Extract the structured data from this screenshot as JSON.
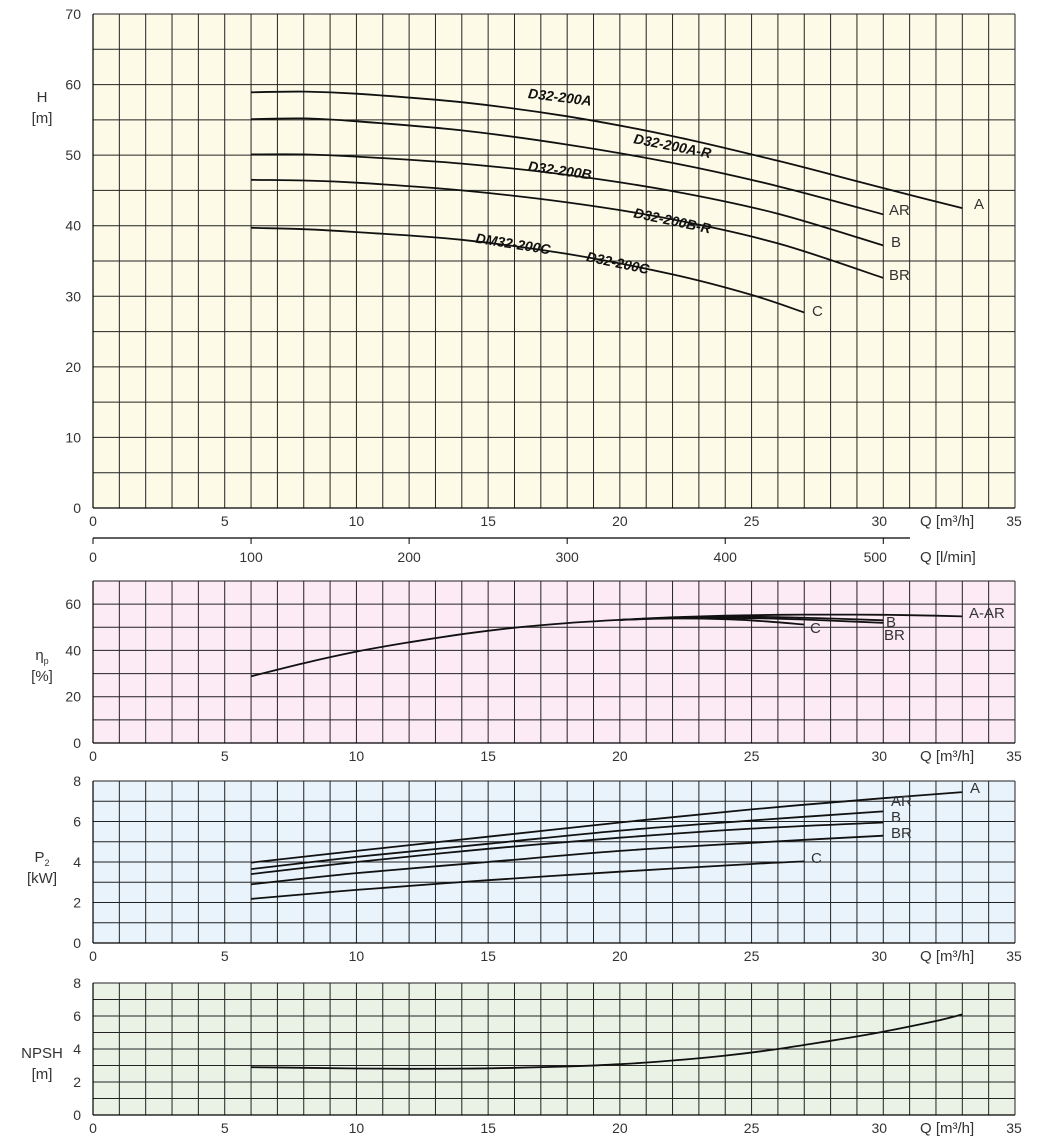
{
  "colors": {
    "head_bg": "#fdfbe7",
    "eff_bg": "#fcebf5",
    "power_bg": "#e8f3fb",
    "npsh_bg": "#eaf2e6",
    "grid": "#222222",
    "curve": "#111111"
  },
  "chart_data": [
    {
      "id": "head",
      "type": "line",
      "ylabel": "H",
      "yunit": "[m]",
      "xlabel": "Q [m³/h]",
      "xlabel2": "Q [l/min]",
      "xlim": [
        0,
        35
      ],
      "ylim": [
        0,
        70
      ],
      "xticks": [
        0,
        5,
        10,
        15,
        20,
        25,
        30,
        35
      ],
      "yticks": [
        0,
        10,
        20,
        30,
        40,
        50,
        60,
        70
      ],
      "x2ticks": [
        0,
        100,
        200,
        300,
        400,
        500
      ],
      "grid": true,
      "series": [
        {
          "name": "A",
          "x": [
            6,
            8,
            10,
            14,
            18,
            22,
            26,
            29,
            31.5,
            33
          ],
          "y": [
            58.9,
            59,
            58.7,
            57.5,
            55.5,
            52.7,
            49.2,
            46.3,
            43.9,
            42.5
          ]
        },
        {
          "name": "AR",
          "x": [
            6,
            8,
            10,
            14,
            18,
            22,
            26,
            30
          ],
          "y": [
            55.1,
            55.2,
            54.8,
            53.5,
            51.5,
            48.9,
            45.6,
            41.6
          ]
        },
        {
          "name": "B",
          "x": [
            6,
            8,
            10,
            14,
            18,
            22,
            26,
            30
          ],
          "y": [
            50.1,
            50.1,
            49.8,
            48.8,
            47.2,
            44.9,
            41.7,
            37.2
          ]
        },
        {
          "name": "BR",
          "x": [
            6,
            8,
            10,
            14,
            18,
            22,
            26,
            30
          ],
          "y": [
            46.5,
            46.4,
            46.1,
            45.0,
            43.3,
            40.9,
            37.5,
            32.6
          ]
        },
        {
          "name": "C",
          "x": [
            6,
            8,
            10,
            14,
            18,
            22,
            25,
            27
          ],
          "y": [
            39.7,
            39.5,
            39.1,
            38.0,
            36.0,
            33.1,
            30.2,
            27.7
          ]
        }
      ],
      "annotations": [
        {
          "text": "D32-200A",
          "x": 16.5,
          "y": 58.1,
          "angle": 7
        },
        {
          "text": "D32-200A-R",
          "x": 20.5,
          "y": 51.7,
          "angle": 11
        },
        {
          "text": "D32-200B",
          "x": 16.5,
          "y": 47.8,
          "angle": 8
        },
        {
          "text": "D32-200B-R",
          "x": 20.5,
          "y": 41.2,
          "angle": 12
        },
        {
          "text": "DM32-200C",
          "x": 14.5,
          "y": 37.6,
          "angle": 9
        },
        {
          "text": "D32-200C",
          "x": 18.7,
          "y": 35.0,
          "angle": 12
        }
      ]
    },
    {
      "id": "efficiency",
      "type": "line",
      "ylabel": "η",
      "ylabel_sub": "p",
      "yunit": "[%]",
      "xlabel": "Q [m³/h]",
      "xlim": [
        0,
        35
      ],
      "ylim": [
        0,
        70
      ],
      "xticks": [
        0,
        5,
        10,
        15,
        20,
        25,
        30,
        35
      ],
      "yticks": [
        0,
        20,
        40,
        60
      ],
      "grid": true,
      "series": [
        {
          "name": "A-AR",
          "x": [
            6,
            8,
            10,
            12,
            14,
            16,
            18,
            20,
            22,
            24,
            26,
            28,
            30,
            32,
            33
          ],
          "y": [
            28.8,
            34.5,
            39.5,
            43.5,
            47,
            49.8,
            51.8,
            53.2,
            54.3,
            55,
            55.4,
            55.5,
            55.4,
            55,
            54.7
          ]
        },
        {
          "name": "B",
          "x": [
            20,
            22,
            24,
            26,
            28,
            30
          ],
          "y": [
            53.2,
            54.2,
            54.6,
            54.4,
            53.8,
            53.0
          ]
        },
        {
          "name": "BR",
          "x": [
            20,
            22,
            24,
            26,
            28,
            30
          ],
          "y": [
            53.2,
            54.0,
            54.1,
            53.7,
            52.9,
            51.9
          ]
        },
        {
          "name": "C",
          "x": [
            20,
            22,
            24,
            25.5,
            27
          ],
          "y": [
            53.2,
            53.8,
            53.5,
            52.6,
            51.2
          ]
        }
      ]
    },
    {
      "id": "power",
      "type": "line",
      "ylabel": "P",
      "ylabel_sub": "2",
      "yunit": "[kW]",
      "xlabel": "Q [m³/h]",
      "xlim": [
        0,
        35
      ],
      "ylim": [
        0,
        8
      ],
      "xticks": [
        0,
        5,
        10,
        15,
        20,
        25,
        30,
        35
      ],
      "yticks": [
        0,
        2,
        4,
        6,
        8
      ],
      "grid": true,
      "series": [
        {
          "name": "A",
          "x": [
            6,
            10,
            15,
            20,
            25,
            30,
            33
          ],
          "y": [
            3.97,
            4.55,
            5.25,
            5.95,
            6.6,
            7.15,
            7.45
          ]
        },
        {
          "name": "AR",
          "x": [
            6,
            10,
            15,
            20,
            25,
            30
          ],
          "y": [
            3.65,
            4.25,
            4.9,
            5.55,
            6.05,
            6.5
          ]
        },
        {
          "name": "B",
          "x": [
            6,
            10,
            15,
            20,
            25,
            30
          ],
          "y": [
            3.4,
            4.0,
            4.65,
            5.2,
            5.65,
            5.95
          ]
        },
        {
          "name": "BR",
          "x": [
            6,
            10,
            15,
            20,
            25,
            30
          ],
          "y": [
            2.9,
            3.45,
            4.0,
            4.55,
            4.95,
            5.3
          ]
        },
        {
          "name": "C",
          "x": [
            6,
            10,
            15,
            20,
            25,
            27
          ],
          "y": [
            2.18,
            2.62,
            3.1,
            3.52,
            3.9,
            4.03
          ]
        }
      ]
    },
    {
      "id": "npsh",
      "type": "line",
      "ylabel": "NPSH",
      "yunit": "[m]",
      "xlabel": "Q [m³/h]",
      "xlim": [
        0,
        35
      ],
      "ylim": [
        0,
        8
      ],
      "xticks": [
        0,
        5,
        10,
        15,
        20,
        25,
        30,
        35
      ],
      "yticks": [
        0,
        2,
        4,
        6,
        8
      ],
      "grid": true,
      "series": [
        {
          "name": "",
          "x": [
            6,
            8,
            10,
            12,
            14,
            16,
            18,
            20,
            22,
            24,
            26,
            28,
            30,
            32,
            33
          ],
          "y": [
            2.9,
            2.86,
            2.82,
            2.8,
            2.81,
            2.86,
            2.94,
            3.08,
            3.3,
            3.6,
            4.0,
            4.5,
            5.05,
            5.7,
            6.1
          ]
        }
      ]
    }
  ]
}
